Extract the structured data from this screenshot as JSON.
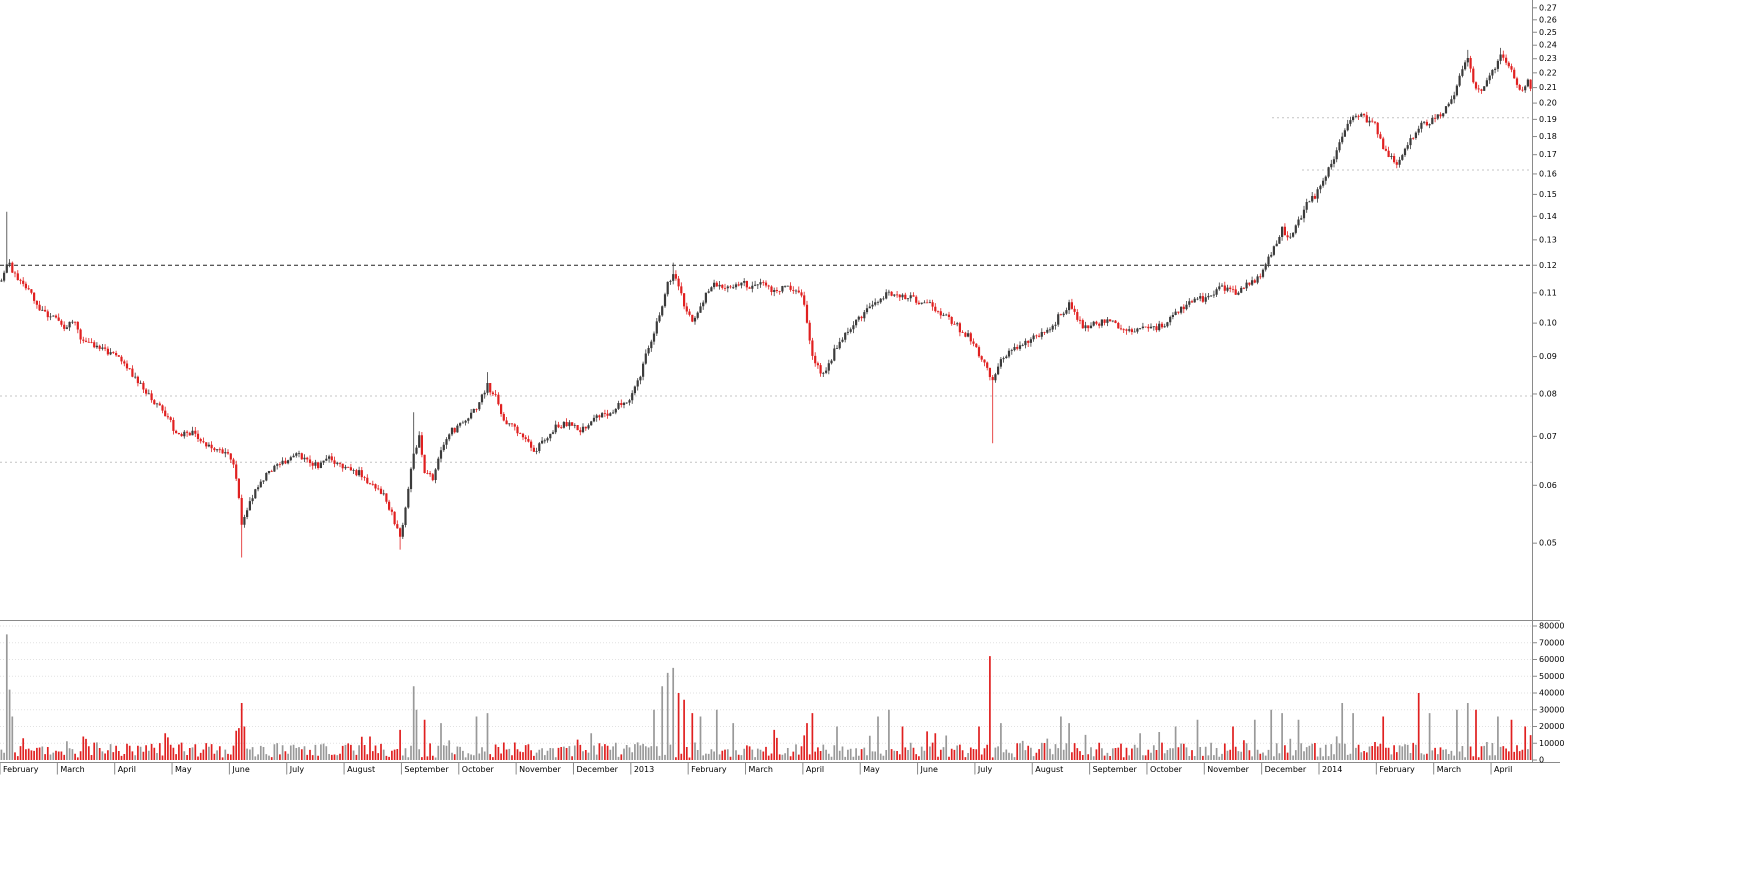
{
  "chart_data": {
    "type": "candlestick",
    "title": "",
    "price_axis": {
      "scale": "log",
      "min": 0.0395,
      "max": 0.275,
      "ticks": [
        0.27,
        0.26,
        0.25,
        0.24,
        0.23,
        0.22,
        0.21,
        0.2,
        0.19,
        0.18,
        0.17,
        0.16,
        0.15,
        0.14,
        0.13,
        0.12,
        0.11,
        0.1,
        0.09,
        0.08,
        0.07,
        0.06,
        0.05
      ]
    },
    "volume_axis": {
      "min": 0,
      "max": 80000,
      "ticks": [
        80000,
        70000,
        60000,
        50000,
        40000,
        30000,
        20000,
        10000,
        0
      ]
    },
    "x_axis": {
      "month_labels": [
        "February",
        "March",
        "April",
        "May",
        "June",
        "July",
        "August",
        "September",
        "October",
        "November",
        "December",
        "2013",
        "February",
        "March",
        "April",
        "May",
        "June",
        "July",
        "August",
        "September",
        "October",
        "November",
        "December",
        "2014",
        "February",
        "March",
        "April"
      ],
      "days_per_month": 21,
      "total_days": 561
    },
    "levels": [
      {
        "price": 0.12,
        "style": "dark",
        "x1": 0,
        "x2": 1
      },
      {
        "price": 0.0795,
        "style": "light",
        "x1": 0,
        "x2": 1
      },
      {
        "price": 0.0645,
        "style": "light",
        "x1": 0,
        "x2": 1
      },
      {
        "price": 0.191,
        "style": "light",
        "x1": 0.83,
        "x2": 1
      },
      {
        "price": 0.162,
        "style": "light",
        "x1": 0.85,
        "x2": 1
      }
    ],
    "close_keyframes": [
      [
        0,
        0.114
      ],
      [
        2,
        0.121
      ],
      [
        5,
        0.117
      ],
      [
        9,
        0.112
      ],
      [
        13,
        0.106
      ],
      [
        17,
        0.103
      ],
      [
        20,
        0.101
      ],
      [
        23,
        0.099
      ],
      [
        26,
        0.101
      ],
      [
        29,
        0.096
      ],
      [
        33,
        0.094
      ],
      [
        37,
        0.092
      ],
      [
        41,
        0.091
      ],
      [
        44,
        0.089
      ],
      [
        48,
        0.085
      ],
      [
        52,
        0.081
      ],
      [
        56,
        0.078
      ],
      [
        60,
        0.075
      ],
      [
        62,
        0.073
      ],
      [
        65,
        0.07
      ],
      [
        69,
        0.071
      ],
      [
        73,
        0.069
      ],
      [
        77,
        0.068
      ],
      [
        81,
        0.067
      ],
      [
        83,
        0.066
      ],
      [
        85,
        0.064
      ],
      [
        87,
        0.058
      ],
      [
        88,
        0.053
      ],
      [
        90,
        0.056
      ],
      [
        93,
        0.059
      ],
      [
        97,
        0.062
      ],
      [
        101,
        0.064
      ],
      [
        104,
        0.065
      ],
      [
        108,
        0.066
      ],
      [
        112,
        0.065
      ],
      [
        116,
        0.064
      ],
      [
        120,
        0.065
      ],
      [
        124,
        0.064
      ],
      [
        128,
        0.063
      ],
      [
        132,
        0.062
      ],
      [
        136,
        0.06
      ],
      [
        140,
        0.058
      ],
      [
        143,
        0.055
      ],
      [
        146,
        0.051
      ],
      [
        148,
        0.056
      ],
      [
        151,
        0.066
      ],
      [
        153,
        0.07
      ],
      [
        155,
        0.063
      ],
      [
        158,
        0.061
      ],
      [
        161,
        0.067
      ],
      [
        164,
        0.071
      ],
      [
        167,
        0.072
      ],
      [
        170,
        0.074
      ],
      [
        174,
        0.077
      ],
      [
        178,
        0.082
      ],
      [
        181,
        0.079
      ],
      [
        184,
        0.074
      ],
      [
        188,
        0.072
      ],
      [
        191,
        0.07
      ],
      [
        195,
        0.067
      ],
      [
        199,
        0.069
      ],
      [
        203,
        0.072
      ],
      [
        207,
        0.073
      ],
      [
        212,
        0.071
      ],
      [
        216,
        0.073
      ],
      [
        220,
        0.075
      ],
      [
        224,
        0.076
      ],
      [
        228,
        0.078
      ],
      [
        230,
        0.079
      ],
      [
        233,
        0.083
      ],
      [
        236,
        0.09
      ],
      [
        239,
        0.097
      ],
      [
        242,
        0.106
      ],
      [
        244,
        0.113
      ],
      [
        246,
        0.118
      ],
      [
        248,
        0.112
      ],
      [
        250,
        0.106
      ],
      [
        253,
        0.1
      ],
      [
        256,
        0.106
      ],
      [
        259,
        0.111
      ],
      [
        262,
        0.113
      ],
      [
        265,
        0.111
      ],
      [
        268,
        0.112
      ],
      [
        272,
        0.113
      ],
      [
        275,
        0.112
      ],
      [
        279,
        0.113
      ],
      [
        283,
        0.111
      ],
      [
        287,
        0.112
      ],
      [
        291,
        0.11
      ],
      [
        293,
        0.109
      ],
      [
        295,
        0.101
      ],
      [
        297,
        0.09
      ],
      [
        300,
        0.085
      ],
      [
        303,
        0.088
      ],
      [
        306,
        0.093
      ],
      [
        310,
        0.097
      ],
      [
        314,
        0.101
      ],
      [
        317,
        0.104
      ],
      [
        321,
        0.107
      ],
      [
        325,
        0.11
      ],
      [
        329,
        0.109
      ],
      [
        333,
        0.108
      ],
      [
        338,
        0.107
      ],
      [
        342,
        0.105
      ],
      [
        346,
        0.102
      ],
      [
        350,
        0.099
      ],
      [
        354,
        0.096
      ],
      [
        356,
        0.094
      ],
      [
        358,
        0.091
      ],
      [
        361,
        0.086
      ],
      [
        363,
        0.084
      ],
      [
        366,
        0.089
      ],
      [
        370,
        0.092
      ],
      [
        374,
        0.094
      ],
      [
        377,
        0.095
      ],
      [
        380,
        0.096
      ],
      [
        384,
        0.098
      ],
      [
        388,
        0.103
      ],
      [
        391,
        0.106
      ],
      [
        394,
        0.101
      ],
      [
        398,
        0.098
      ],
      [
        401,
        0.1
      ],
      [
        405,
        0.101
      ],
      [
        409,
        0.099
      ],
      [
        413,
        0.098
      ],
      [
        417,
        0.098
      ],
      [
        422,
        0.098
      ],
      [
        426,
        0.1
      ],
      [
        430,
        0.103
      ],
      [
        434,
        0.106
      ],
      [
        438,
        0.109
      ],
      [
        440,
        0.108
      ],
      [
        443,
        0.11
      ],
      [
        447,
        0.112
      ],
      [
        451,
        0.11
      ],
      [
        455,
        0.112
      ],
      [
        459,
        0.114
      ],
      [
        461,
        0.116
      ],
      [
        463,
        0.121
      ],
      [
        466,
        0.127
      ],
      [
        469,
        0.134
      ],
      [
        472,
        0.131
      ],
      [
        475,
        0.138
      ],
      [
        478,
        0.145
      ],
      [
        481,
        0.149
      ],
      [
        485,
        0.159
      ],
      [
        488,
        0.168
      ],
      [
        491,
        0.18
      ],
      [
        494,
        0.189
      ],
      [
        497,
        0.193
      ],
      [
        500,
        0.19
      ],
      [
        503,
        0.186
      ],
      [
        506,
        0.174
      ],
      [
        509,
        0.168
      ],
      [
        511,
        0.164
      ],
      [
        514,
        0.172
      ],
      [
        517,
        0.18
      ],
      [
        520,
        0.186
      ],
      [
        524,
        0.19
      ],
      [
        527,
        0.193
      ],
      [
        530,
        0.199
      ],
      [
        533,
        0.21
      ],
      [
        535,
        0.222
      ],
      [
        537,
        0.23
      ],
      [
        539,
        0.216
      ],
      [
        541,
        0.207
      ],
      [
        543,
        0.212
      ],
      [
        545,
        0.218
      ],
      [
        547,
        0.224
      ],
      [
        549,
        0.231
      ],
      [
        551,
        0.229
      ],
      [
        553,
        0.222
      ],
      [
        555,
        0.212
      ],
      [
        557,
        0.207
      ],
      [
        559,
        0.214
      ],
      [
        560,
        0.21
      ]
    ],
    "wick_events": [
      {
        "t": 2,
        "high": 0.142
      },
      {
        "t": 88,
        "low": 0.0478
      },
      {
        "t": 146,
        "low": 0.049
      },
      {
        "t": 151,
        "high": 0.0755
      },
      {
        "t": 178,
        "high": 0.0857
      },
      {
        "t": 246,
        "high": 0.121
      },
      {
        "t": 363,
        "low": 0.0685
      },
      {
        "t": 537,
        "high": 0.2365
      },
      {
        "t": 549,
        "high": 0.238
      }
    ],
    "volume_spikes": [
      {
        "t": 2,
        "v": 75000,
        "dir": "up"
      },
      {
        "t": 3,
        "v": 42000,
        "dir": "up"
      },
      {
        "t": 4,
        "v": 26000,
        "dir": "up"
      },
      {
        "t": 30,
        "v": 14000,
        "dir": "dn"
      },
      {
        "t": 60,
        "v": 16000,
        "dir": "dn"
      },
      {
        "t": 88,
        "v": 34000,
        "dir": "dn"
      },
      {
        "t": 89,
        "v": 20000,
        "dir": "dn"
      },
      {
        "t": 146,
        "v": 18000,
        "dir": "dn"
      },
      {
        "t": 151,
        "v": 44000,
        "dir": "up"
      },
      {
        "t": 152,
        "v": 30000,
        "dir": "up"
      },
      {
        "t": 155,
        "v": 24000,
        "dir": "dn"
      },
      {
        "t": 161,
        "v": 22000,
        "dir": "up"
      },
      {
        "t": 174,
        "v": 26000,
        "dir": "up"
      },
      {
        "t": 178,
        "v": 28000,
        "dir": "up"
      },
      {
        "t": 216,
        "v": 16000,
        "dir": "up"
      },
      {
        "t": 239,
        "v": 30000,
        "dir": "up"
      },
      {
        "t": 242,
        "v": 44000,
        "dir": "up"
      },
      {
        "t": 244,
        "v": 52000,
        "dir": "up"
      },
      {
        "t": 246,
        "v": 55000,
        "dir": "up"
      },
      {
        "t": 248,
        "v": 40000,
        "dir": "dn"
      },
      {
        "t": 250,
        "v": 36000,
        "dir": "dn"
      },
      {
        "t": 253,
        "v": 28000,
        "dir": "dn"
      },
      {
        "t": 256,
        "v": 26000,
        "dir": "up"
      },
      {
        "t": 262,
        "v": 30000,
        "dir": "up"
      },
      {
        "t": 268,
        "v": 22000,
        "dir": "up"
      },
      {
        "t": 283,
        "v": 18000,
        "dir": "dn"
      },
      {
        "t": 295,
        "v": 22000,
        "dir": "dn"
      },
      {
        "t": 297,
        "v": 28000,
        "dir": "dn"
      },
      {
        "t": 306,
        "v": 20000,
        "dir": "up"
      },
      {
        "t": 321,
        "v": 26000,
        "dir": "up"
      },
      {
        "t": 325,
        "v": 30000,
        "dir": "up"
      },
      {
        "t": 330,
        "v": 20000,
        "dir": "dn"
      },
      {
        "t": 342,
        "v": 16000,
        "dir": "dn"
      },
      {
        "t": 358,
        "v": 20000,
        "dir": "dn"
      },
      {
        "t": 362,
        "v": 62000,
        "dir": "dn"
      },
      {
        "t": 366,
        "v": 22000,
        "dir": "up"
      },
      {
        "t": 388,
        "v": 26000,
        "dir": "up"
      },
      {
        "t": 391,
        "v": 22000,
        "dir": "up"
      },
      {
        "t": 417,
        "v": 16000,
        "dir": "up"
      },
      {
        "t": 430,
        "v": 20000,
        "dir": "up"
      },
      {
        "t": 438,
        "v": 24000,
        "dir": "up"
      },
      {
        "t": 451,
        "v": 20000,
        "dir": "dn"
      },
      {
        "t": 459,
        "v": 24000,
        "dir": "up"
      },
      {
        "t": 465,
        "v": 30000,
        "dir": "up"
      },
      {
        "t": 469,
        "v": 28000,
        "dir": "up"
      },
      {
        "t": 475,
        "v": 24000,
        "dir": "up"
      },
      {
        "t": 491,
        "v": 34000,
        "dir": "up"
      },
      {
        "t": 495,
        "v": 28000,
        "dir": "up"
      },
      {
        "t": 506,
        "v": 26000,
        "dir": "dn"
      },
      {
        "t": 519,
        "v": 40000,
        "dir": "dn"
      },
      {
        "t": 523,
        "v": 28000,
        "dir": "up"
      },
      {
        "t": 533,
        "v": 30000,
        "dir": "up"
      },
      {
        "t": 537,
        "v": 34000,
        "dir": "up"
      },
      {
        "t": 540,
        "v": 30000,
        "dir": "dn"
      },
      {
        "t": 548,
        "v": 26000,
        "dir": "up"
      },
      {
        "t": 553,
        "v": 24000,
        "dir": "dn"
      },
      {
        "t": 558,
        "v": 20000,
        "dir": "dn"
      }
    ],
    "colors": {
      "up": "#3b3b3b",
      "down": "#e02020",
      "volume_up": "#999999",
      "volume_down": "#e02020",
      "grid": "#e2e2e2",
      "axis": "#8a8a8a",
      "level_dark": "#222222",
      "level_light": "#c4c4c4",
      "text": "#000000",
      "background": "#ffffff"
    }
  }
}
